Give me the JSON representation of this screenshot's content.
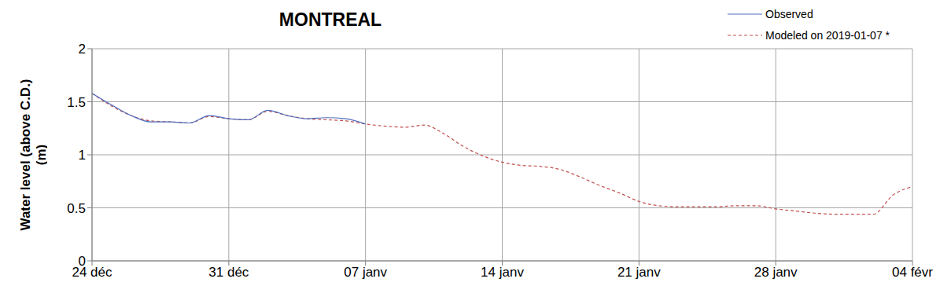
{
  "chart_data": {
    "type": "line",
    "title": "MONTREAL",
    "y_label": "Water level (above C.D.) (m)",
    "x": [
      0,
      1,
      2,
      3,
      4,
      5,
      6,
      7,
      8,
      9,
      10,
      11,
      12,
      13,
      14,
      15,
      16,
      17,
      18,
      19,
      20,
      21,
      22,
      23,
      24,
      25,
      26,
      27,
      28,
      29,
      30,
      31,
      32,
      33,
      34,
      35,
      36,
      37,
      38,
      39,
      40,
      41,
      42
    ],
    "xlim": [
      0,
      42
    ],
    "xticks": [
      {
        "value": 0,
        "label": "24 déc"
      },
      {
        "value": 7,
        "label": "31 déc"
      },
      {
        "value": 14,
        "label": "07 janv"
      },
      {
        "value": 21,
        "label": "14 janv"
      },
      {
        "value": 28,
        "label": "21 janv"
      },
      {
        "value": 35,
        "label": "28 janv"
      },
      {
        "value": 42,
        "label": "04 févr"
      }
    ],
    "ylim": [
      0,
      2
    ],
    "yticks": [
      0,
      0.5,
      1,
      1.5,
      2
    ],
    "grid": true,
    "legend": "top-right",
    "series": [
      {
        "name": "Modeled on 2019-01-07 *",
        "color": "#c0504d",
        "line_style": "dashed",
        "values": [
          1.58,
          1.46,
          1.37,
          1.32,
          1.31,
          1.3,
          1.36,
          1.34,
          1.33,
          1.41,
          1.37,
          1.34,
          1.33,
          1.32,
          1.29,
          1.27,
          1.26,
          1.28,
          1.2,
          1.08,
          0.99,
          0.93,
          0.9,
          0.89,
          0.86,
          0.79,
          0.71,
          0.64,
          0.56,
          0.52,
          0.51,
          0.51,
          0.51,
          0.52,
          0.52,
          0.49,
          0.47,
          0.45,
          0.44,
          0.44,
          0.44,
          0.62,
          0.7
        ]
      },
      {
        "name": "Observed",
        "color": "#4f6dbf",
        "line_style": "solid",
        "values": [
          1.58,
          1.47,
          1.37,
          1.31,
          1.31,
          1.3,
          1.37,
          1.34,
          1.33,
          1.42,
          1.37,
          1.34,
          1.35,
          1.34,
          1.29,
          null,
          null,
          null,
          null,
          null,
          null,
          null,
          null,
          null,
          null,
          null,
          null,
          null,
          null,
          null,
          null,
          null,
          null,
          null,
          null,
          null,
          null,
          null,
          null,
          null,
          null,
          null,
          null
        ]
      }
    ]
  }
}
